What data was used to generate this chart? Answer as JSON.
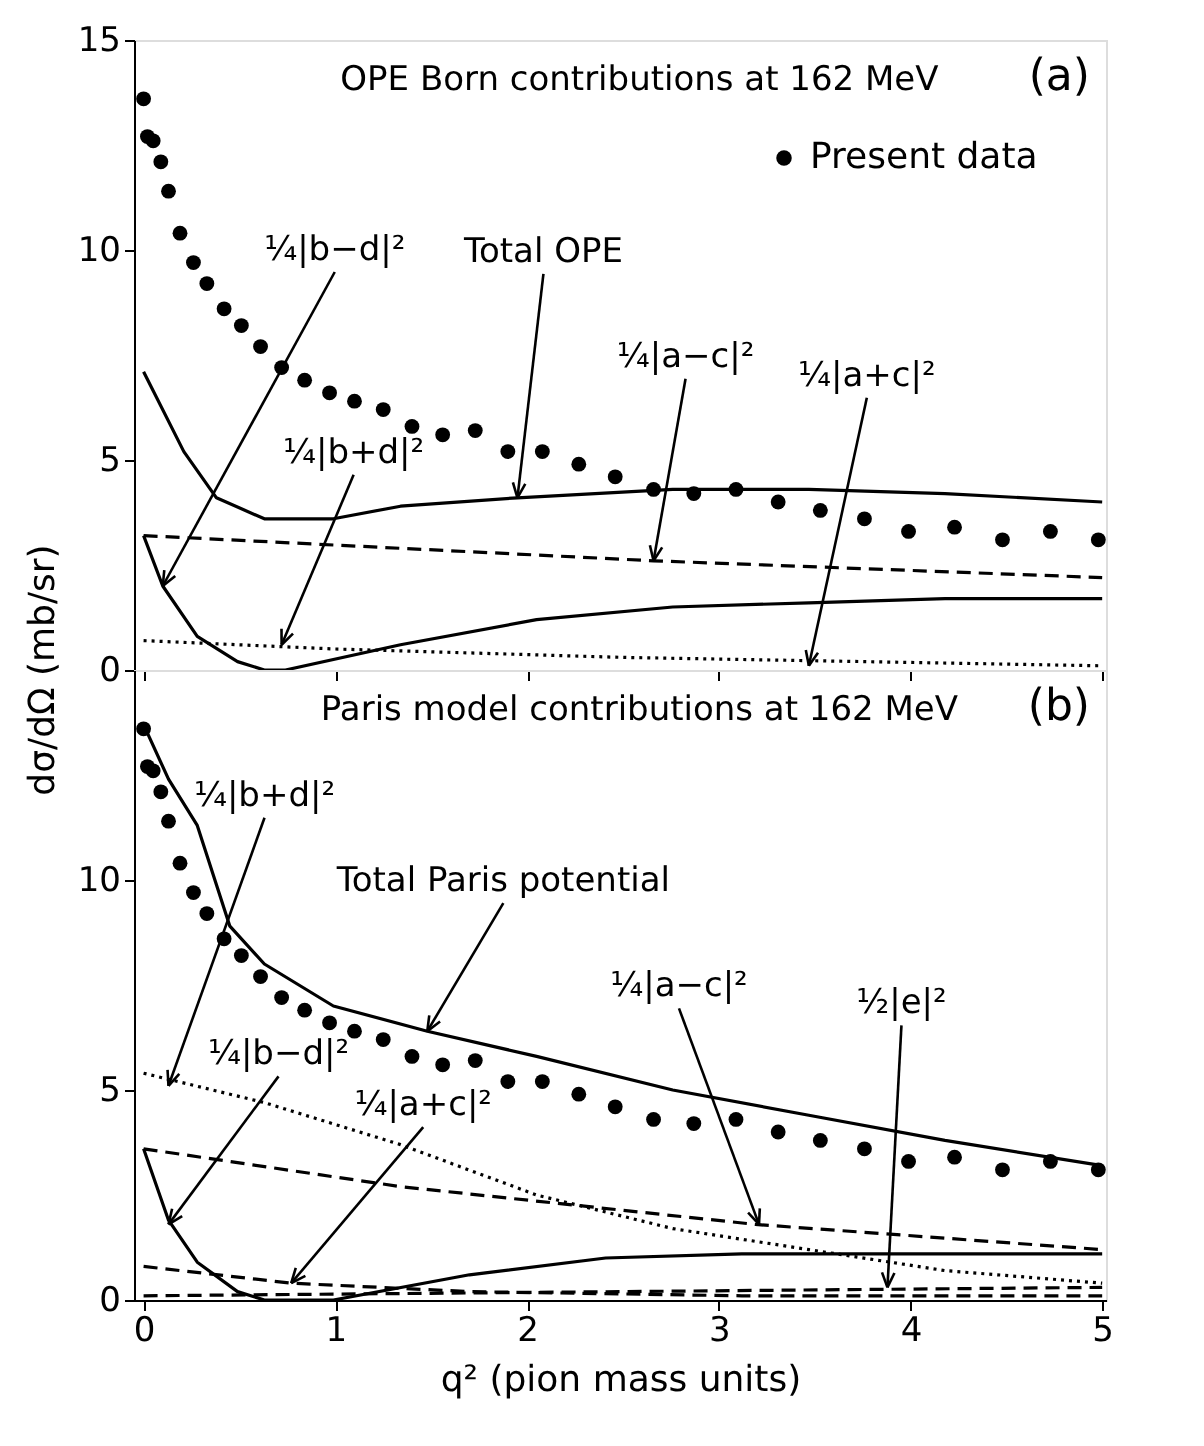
{
  "chart_data": [
    {
      "type": "line",
      "title": "OPE Born contributions at 162 MeV",
      "ylabel": "dσ/dΩ (mb/sr)",
      "xlim": [
        -0.05,
        5.02
      ],
      "ylim": [
        0,
        15
      ],
      "xticks": [
        0,
        1,
        2,
        3,
        4,
        5
      ],
      "yticks": [
        0,
        5,
        10,
        15
      ],
      "tick_labels": "y",
      "grid": false,
      "legend": "top right",
      "series": [
        {
          "name": "Present data",
          "type": "scatter",
          "marker": "circle",
          "color": "#000000",
          "x": [
            0,
            0.02,
            0.05,
            0.09,
            0.13,
            0.19,
            0.26,
            0.33,
            0.42,
            0.51,
            0.61,
            0.72,
            0.84,
            0.97,
            1.1,
            1.25,
            1.4,
            1.56,
            1.73,
            1.9,
            2.08,
            2.27,
            2.46,
            2.66,
            2.87,
            3.09,
            3.31,
            3.53,
            3.76,
            3.99,
            4.23,
            4.48,
            4.73,
            4.98
          ],
          "values": [
            13.6,
            12.7,
            12.6,
            12.1,
            11.4,
            10.4,
            9.7,
            9.2,
            8.6,
            8.2,
            7.7,
            7.2,
            6.9,
            6.6,
            6.4,
            6.2,
            5.8,
            5.6,
            5.7,
            5.2,
            5.2,
            4.9,
            4.6,
            4.3,
            4.2,
            4.3,
            4.0,
            3.8,
            3.6,
            3.3,
            3.4,
            3.1,
            3.3,
            3.1
          ]
        },
        {
          "line_style": "solid",
          "color": "#000000",
          "x": [
            0,
            0.21,
            0.38,
            0.63,
            0.77,
            0.99,
            1.34,
            1.95,
            2.76,
            3.47,
            4.18,
            5
          ],
          "values": [
            7.1,
            5.2,
            4.1,
            3.6,
            3.6,
            3.6,
            3.9,
            4.1,
            4.3,
            4.3,
            4.2,
            4.0
          ]
        },
        {
          "line_style": "dashed",
          "color": "#000000",
          "x": [
            0,
            2.66,
            5
          ],
          "values": [
            3.2,
            2.6,
            2.2
          ]
        },
        {
          "line_style": "solid",
          "color": "#000000",
          "x": [
            0,
            0.1,
            0.28,
            0.49,
            0.63,
            0.74,
            1.34,
            2.05,
            2.76,
            3.47,
            4.18,
            5
          ],
          "values": [
            3.2,
            2.0,
            0.8,
            0.2,
            0,
            0,
            0.6,
            1.2,
            1.5,
            1.6,
            1.7,
            1.7
          ]
        },
        {
          "line_style": "dotted",
          "color": "#000000",
          "x": [
            0,
            1,
            2.5,
            5
          ],
          "values": [
            0.7,
            0.5,
            0.3,
            0.1
          ]
        }
      ],
      "annotations": [
        "(a)",
        {
          "text": "¼|b−d|²",
          "x": 0.1,
          "y": 2.0
        },
        {
          "text": "Total OPE",
          "x": 1.95,
          "y": 4.1
        },
        {
          "text": "¼|a−c|²",
          "x": 2.66,
          "y": 2.6
        },
        {
          "text": "¼|a+c|²",
          "x": 3.47,
          "y": 0.1
        },
        {
          "text": "¼|b+d|²",
          "x": 0.72,
          "y": 0.6
        }
      ]
    },
    {
      "type": "line",
      "title": "Paris model contributions at 162 MeV",
      "xlabel": "q² (pion mass units)",
      "xlim": [
        -0.05,
        5.02
      ],
      "ylim": [
        0,
        15
      ],
      "xticks": [
        0,
        1,
        2,
        3,
        4,
        5
      ],
      "yticks": [
        0,
        5,
        10
      ],
      "grid": false,
      "series": [
        {
          "type": "scatter",
          "marker": "circle",
          "color": "#000000",
          "x": [
            0,
            0.02,
            0.05,
            0.09,
            0.13,
            0.19,
            0.26,
            0.33,
            0.42,
            0.51,
            0.61,
            0.72,
            0.84,
            0.97,
            1.1,
            1.25,
            1.4,
            1.56,
            1.73,
            1.9,
            2.08,
            2.27,
            2.46,
            2.66,
            2.87,
            3.09,
            3.31,
            3.53,
            3.76,
            3.99,
            4.23,
            4.48,
            4.73,
            4.98
          ],
          "values": [
            13.6,
            12.7,
            12.6,
            12.1,
            11.4,
            10.4,
            9.7,
            9.2,
            8.6,
            8.2,
            7.7,
            7.2,
            6.9,
            6.6,
            6.4,
            6.2,
            5.8,
            5.6,
            5.7,
            5.2,
            5.2,
            4.9,
            4.6,
            4.3,
            4.2,
            4.3,
            4.0,
            3.8,
            3.6,
            3.3,
            3.4,
            3.1,
            3.3,
            3.1
          ]
        },
        {
          "line_style": "solid",
          "color": "#000000",
          "x": [
            0,
            0.13,
            0.28,
            0.45,
            0.63,
            0.99,
            1.48,
            2.05,
            2.76,
            3.47,
            4.18,
            5
          ],
          "values": [
            13.7,
            12.4,
            11.3,
            8.9,
            8.0,
            7.0,
            6.4,
            5.8,
            5.0,
            4.4,
            3.8,
            3.2
          ]
        },
        {
          "line_style": "dotted",
          "color": "#000000",
          "x": [
            0,
            0.63,
            1.34,
            2.05,
            2.76,
            3.47,
            4.18,
            5
          ],
          "values": [
            5.4,
            4.7,
            3.7,
            2.5,
            1.7,
            1.2,
            0.7,
            0.4
          ]
        },
        {
          "line_style": "dashed",
          "color": "#000000",
          "x": [
            0,
            1.34,
            3.19,
            5
          ],
          "values": [
            3.6,
            2.7,
            1.8,
            1.2
          ]
        },
        {
          "line_style": "solid",
          "color": "#000000",
          "x": [
            0,
            0.13,
            0.28,
            0.49,
            0.63,
            0.99,
            1.7,
            2.41,
            3.12,
            3.47,
            4.18,
            5
          ],
          "values": [
            3.6,
            1.9,
            0.9,
            0.2,
            0,
            0,
            0.6,
            1.0,
            1.1,
            1.1,
            1.1,
            1.1
          ]
        },
        {
          "line_style": "dashed",
          "color": "#000000",
          "x": [
            0,
            0.77,
            1.7,
            3.12,
            5
          ],
          "values": [
            0.8,
            0.4,
            0.2,
            0.1,
            0.1
          ]
        },
        {
          "line_style": "dashed",
          "color": "#000000",
          "x": [
            0,
            2.5,
            5
          ],
          "values": [
            0.1,
            0.2,
            0.3
          ]
        }
      ],
      "annotations": [
        "(b)",
        {
          "text": "¼|b+d|²",
          "x": 0.13,
          "y": 5.1
        },
        {
          "text": "Total Paris potential",
          "x": 1.48,
          "y": 6.4
        },
        {
          "text": "¼|a−c|²",
          "x": 3.21,
          "y": 1.8
        },
        {
          "text": "½|e|²",
          "x": 3.88,
          "y": 0.3
        },
        {
          "text": "¼|b−d|²",
          "x": 0.13,
          "y": 1.8
        },
        {
          "text": "¼|a+c|²",
          "x": 0.77,
          "y": 0.4
        }
      ]
    }
  ]
}
